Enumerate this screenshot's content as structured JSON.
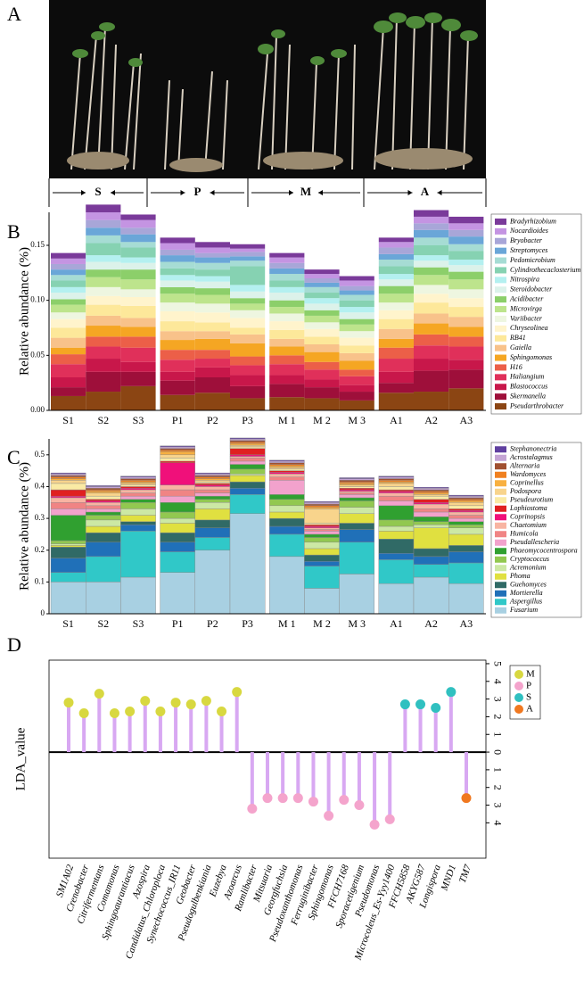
{
  "panel_labels": [
    "A",
    "B",
    "C",
    "D"
  ],
  "photo_groups": [
    "S",
    "P",
    "M",
    "A"
  ],
  "chart_data": [
    {
      "type": "stacked_bar",
      "ylabel": "Relative abundance (%)",
      "categories": [
        "S1",
        "S2",
        "S3",
        "P1",
        "P2",
        "P3",
        "M 1",
        "M 2",
        "M 3",
        "A1",
        "A2",
        "A3"
      ],
      "ylim": [
        0,
        0.18
      ],
      "yticks": [
        {
          "value": 0,
          "label": "0.00"
        },
        {
          "value": 0.05,
          "label": "0.05"
        },
        {
          "value": 0.1,
          "label": "0.10"
        },
        {
          "value": 0.15,
          "label": "0.15"
        }
      ],
      "series": [
        {
          "name": "Pseudarthrobacter",
          "color": "#8b4513",
          "values": [
            0.013,
            0.017,
            0.022,
            0.014,
            0.016,
            0.011,
            0.012,
            0.011,
            0.009,
            0.016,
            0.017,
            0.02
          ]
        },
        {
          "name": "Skermanella",
          "color": "#9e0f3a",
          "values": [
            0.008,
            0.018,
            0.013,
            0.013,
            0.014,
            0.011,
            0.012,
            0.01,
            0.008,
            0.009,
            0.019,
            0.017
          ]
        },
        {
          "name": "Blastococcus",
          "color": "#c8174a",
          "values": [
            0.009,
            0.012,
            0.009,
            0.008,
            0.009,
            0.01,
            0.008,
            0.007,
            0.006,
            0.01,
            0.011,
            0.009
          ]
        },
        {
          "name": "Haliangium",
          "color": "#e0305a",
          "values": [
            0.012,
            0.011,
            0.013,
            0.011,
            0.008,
            0.009,
            0.01,
            0.009,
            0.008,
            0.012,
            0.012,
            0.012
          ]
        },
        {
          "name": "H16",
          "color": "#ec5f48",
          "values": [
            0.009,
            0.009,
            0.01,
            0.009,
            0.008,
            0.008,
            0.008,
            0.007,
            0.006,
            0.01,
            0.01,
            0.009
          ]
        },
        {
          "name": "Sphingomonas",
          "color": "#f5a623",
          "values": [
            0.006,
            0.01,
            0.009,
            0.009,
            0.01,
            0.012,
            0.008,
            0.009,
            0.008,
            0.008,
            0.01,
            0.009
          ]
        },
        {
          "name": "Gaiella",
          "color": "#f8c28a",
          "values": [
            0.009,
            0.009,
            0.008,
            0.008,
            0.007,
            0.008,
            0.007,
            0.007,
            0.007,
            0.009,
            0.009,
            0.009
          ]
        },
        {
          "name": "RB41",
          "color": "#fde89a",
          "values": [
            0.009,
            0.01,
            0.011,
            0.009,
            0.008,
            0.006,
            0.008,
            0.007,
            0.007,
            0.009,
            0.01,
            0.009
          ]
        },
        {
          "name": "Chryseolinea",
          "color": "#fff4cc",
          "values": [
            0.008,
            0.008,
            0.008,
            0.009,
            0.009,
            0.009,
            0.008,
            0.007,
            0.007,
            0.008,
            0.008,
            0.008
          ]
        },
        {
          "name": "Variibacter",
          "color": "#eef6e0",
          "values": [
            0.006,
            0.008,
            0.007,
            0.008,
            0.008,
            0.007,
            0.007,
            0.006,
            0.006,
            0.007,
            0.008,
            0.008
          ]
        },
        {
          "name": "Microvirga",
          "color": "#bde48c",
          "values": [
            0.007,
            0.009,
            0.009,
            0.008,
            0.008,
            0.006,
            0.006,
            0.006,
            0.006,
            0.008,
            0.009,
            0.009
          ]
        },
        {
          "name": "Acidibacter",
          "color": "#8ccf6a",
          "values": [
            0.005,
            0.007,
            0.009,
            0.006,
            0.006,
            0.005,
            0.006,
            0.005,
            0.005,
            0.007,
            0.007,
            0.007
          ]
        },
        {
          "name": "Steroidobacter",
          "color": "#dcf2ea",
          "values": [
            0.006,
            0.007,
            0.006,
            0.006,
            0.006,
            0.006,
            0.007,
            0.006,
            0.006,
            0.006,
            0.006,
            0.006
          ]
        },
        {
          "name": "Nitrospira",
          "color": "#b4f0f0",
          "values": [
            0.005,
            0.006,
            0.005,
            0.005,
            0.005,
            0.006,
            0.005,
            0.005,
            0.005,
            0.005,
            0.005,
            0.005
          ]
        },
        {
          "name": "Cylindrothecaclosterium",
          "color": "#86d2b2",
          "values": [
            0.006,
            0.011,
            0.009,
            0.006,
            0.006,
            0.017,
            0.006,
            0.005,
            0.006,
            0.007,
            0.009,
            0.008
          ]
        },
        {
          "name": "Pedomicrobium",
          "color": "#a6dcd4",
          "values": [
            0.005,
            0.007,
            0.005,
            0.006,
            0.006,
            0.005,
            0.006,
            0.005,
            0.005,
            0.006,
            0.007,
            0.006
          ]
        },
        {
          "name": "Streptomyces",
          "color": "#6aa6d8",
          "values": [
            0.005,
            0.007,
            0.007,
            0.006,
            0.005,
            0.004,
            0.005,
            0.004,
            0.004,
            0.005,
            0.007,
            0.007
          ]
        },
        {
          "name": "Bryobacter",
          "color": "#a8a6d8",
          "values": [
            0.005,
            0.007,
            0.006,
            0.005,
            0.004,
            0.004,
            0.005,
            0.004,
            0.004,
            0.006,
            0.006,
            0.006
          ]
        },
        {
          "name": "Nocardioides",
          "color": "#c494e2",
          "values": [
            0.005,
            0.007,
            0.007,
            0.006,
            0.005,
            0.003,
            0.005,
            0.004,
            0.005,
            0.005,
            0.006,
            0.006
          ]
        },
        {
          "name": "Bradyrhizobium",
          "color": "#7a3a9a",
          "values": [
            0.005,
            0.007,
            0.005,
            0.005,
            0.005,
            0.004,
            0.004,
            0.004,
            0.004,
            0.004,
            0.006,
            0.006
          ]
        }
      ]
    },
    {
      "type": "stacked_bar",
      "ylabel": "Relative abundance (%)",
      "categories": [
        "S1",
        "S2",
        "S3",
        "P1",
        "P2",
        "P3",
        "M 1",
        "M 2",
        "M 3",
        "A1",
        "A2",
        "A3"
      ],
      "ylim": [
        0,
        0.55
      ],
      "yticks": [
        0,
        0.1,
        0.2,
        0.3,
        0.4,
        0.5
      ],
      "series": [
        {
          "name": "Fusarium",
          "color": "#a8d0e2",
          "values": [
            0.1,
            0.1,
            0.115,
            0.13,
            0.2,
            0.315,
            0.18,
            0.08,
            0.125,
            0.095,
            0.115,
            0.095
          ]
        },
        {
          "name": "Aspergillus",
          "color": "#30c8c8",
          "values": [
            0.03,
            0.08,
            0.145,
            0.065,
            0.04,
            0.06,
            0.07,
            0.07,
            0.1,
            0.075,
            0.04,
            0.065
          ]
        },
        {
          "name": "Mortierella",
          "color": "#2070b8",
          "values": [
            0.045,
            0.045,
            0.02,
            0.03,
            0.03,
            0.02,
            0.025,
            0.015,
            0.04,
            0.02,
            0.025,
            0.035
          ]
        },
        {
          "name": "Guehomyces",
          "color": "#306a66",
          "values": [
            0.035,
            0.03,
            0.01,
            0.03,
            0.025,
            0.02,
            0.025,
            0.02,
            0.02,
            0.045,
            0.025,
            0.02
          ]
        },
        {
          "name": "Phoma",
          "color": "#e0e040",
          "values": [
            0.005,
            0.02,
            0.02,
            0.03,
            0.035,
            0.02,
            0.02,
            0.02,
            0.03,
            0.025,
            0.065,
            0.035
          ]
        },
        {
          "name": "Acremonium",
          "color": "#cce8a4",
          "values": [
            0.005,
            0.02,
            0.02,
            0.015,
            0.02,
            0.005,
            0.02,
            0.02,
            0.02,
            0.015,
            0.01,
            0.02
          ]
        },
        {
          "name": "Cryptococcus",
          "color": "#92c850",
          "values": [
            0.01,
            0.015,
            0.02,
            0.02,
            0.01,
            0.015,
            0.02,
            0.015,
            0.02,
            0.02,
            0.01,
            0.01
          ]
        },
        {
          "name": "Phaeomycocentrospora",
          "color": "#30a030",
          "values": [
            0.08,
            0.01,
            0.01,
            0.03,
            0.01,
            0.015,
            0.015,
            0.01,
            0.01,
            0.045,
            0.015,
            0.01
          ]
        },
        {
          "name": "Pseudallescheria",
          "color": "#f2a2cc",
          "values": [
            0.02,
            0.01,
            0.01,
            0.02,
            0.01,
            0.01,
            0.045,
            0.01,
            0.01,
            0.015,
            0.015,
            0.01
          ]
        },
        {
          "name": "Humicola",
          "color": "#f08484",
          "values": [
            0.02,
            0.01,
            0.01,
            0.02,
            0.01,
            0.01,
            0.01,
            0.005,
            0.005,
            0.015,
            0.01,
            0.01
          ]
        },
        {
          "name": "Chaetomium",
          "color": "#f8b4a2",
          "values": [
            0.015,
            0.01,
            0.01,
            0.015,
            0.01,
            0.005,
            0.01,
            0.005,
            0.005,
            0.01,
            0.015,
            0.01
          ]
        },
        {
          "name": "Coprinopsis",
          "color": "#f0107a",
          "values": [
            0.005,
            0.005,
            0.005,
            0.07,
            0.005,
            0.005,
            0.005,
            0.005,
            0.005,
            0.005,
            0.005,
            0.005
          ]
        },
        {
          "name": "Lophiostoma",
          "color": "#e02020",
          "values": [
            0.02,
            0.005,
            0.005,
            0.005,
            0.005,
            0.02,
            0.005,
            0.005,
            0.005,
            0.005,
            0.01,
            0.005
          ]
        },
        {
          "name": "Pseudeurotium",
          "color": "#faeaa4",
          "values": [
            0.02,
            0.01,
            0.005,
            0.01,
            0.005,
            0.005,
            0.005,
            0.005,
            0.005,
            0.01,
            0.01,
            0.01
          ]
        },
        {
          "name": "Podospora",
          "color": "#f8d48c",
          "values": [
            0.01,
            0.01,
            0.005,
            0.01,
            0.005,
            0.005,
            0.005,
            0.045,
            0.005,
            0.01,
            0.005,
            0.01
          ]
        },
        {
          "name": "Coprinellus",
          "color": "#f8b040",
          "values": [
            0.005,
            0.005,
            0.005,
            0.01,
            0.005,
            0.005,
            0.005,
            0.005,
            0.005,
            0.005,
            0.005,
            0.005
          ]
        },
        {
          "name": "Wardomyces",
          "color": "#f08020",
          "values": [
            0.005,
            0.005,
            0.005,
            0.005,
            0.005,
            0.005,
            0.005,
            0.005,
            0.005,
            0.005,
            0.005,
            0.005
          ]
        },
        {
          "name": "Alternaria",
          "color": "#a05030",
          "values": [
            0.005,
            0.005,
            0.005,
            0.005,
            0.005,
            0.005,
            0.005,
            0.005,
            0.005,
            0.005,
            0.005,
            0.005
          ]
        },
        {
          "name": "Acrostalagmus",
          "color": "#c4a4d4",
          "values": [
            0.005,
            0.005,
            0.005,
            0.005,
            0.005,
            0.005,
            0.005,
            0.005,
            0.005,
            0.005,
            0.005,
            0.005
          ]
        },
        {
          "name": "Stephanonectria",
          "color": "#6040a0",
          "values": [
            0.003,
            0.003,
            0.003,
            0.003,
            0.003,
            0.003,
            0.003,
            0.003,
            0.003,
            0.003,
            0.003,
            0.003
          ]
        }
      ]
    },
    {
      "type": "lollipop",
      "ylabel": "LDA_value",
      "categories": [
        "SM1A02",
        "Crenobacter",
        "Citrifermentans",
        "Comamonas",
        "Sphingoaurantiacus",
        "Azospira",
        "Candidatus_Chloroploca",
        "Synechococcus_IR11",
        "Geobacter",
        "Pseudogulbenkiania",
        "Euzebya",
        "Azoarcus",
        "Ramlibacter",
        "Mitsuaria",
        "Georgfuchsia",
        "Pseudoxanthomonas",
        "Ferruginibacter",
        "Sphingomonas",
        "FFCH7168",
        "Sporacetigenium",
        "Pseudomonas",
        "Microcoleus_Es-Yyy1400",
        "FFCH5858",
        "AKYG587",
        "Longispora",
        "MND1",
        "TM7"
      ],
      "values": [
        2.8,
        2.2,
        3.3,
        2.2,
        2.3,
        2.9,
        2.3,
        2.8,
        2.7,
        2.9,
        2.3,
        3.4,
        -3.2,
        -2.6,
        -2.6,
        -2.6,
        -2.8,
        -3.6,
        -2.7,
        -3.0,
        -4.1,
        -3.8,
        2.7,
        2.7,
        2.5,
        3.4,
        -2.6
      ],
      "colors": [
        "#d8d840",
        "#d8d840",
        "#d8d840",
        "#d8d840",
        "#d8d840",
        "#d8d840",
        "#d8d840",
        "#d8d840",
        "#d8d840",
        "#d8d840",
        "#d8d840",
        "#d8d840",
        "#f4a4cc",
        "#f4a4cc",
        "#f4a4cc",
        "#f4a4cc",
        "#f4a4cc",
        "#f4a4cc",
        "#f4a4cc",
        "#f4a4cc",
        "#f4a4cc",
        "#f4a4cc",
        "#30c0c0",
        "#30c0c0",
        "#30c0c0",
        "#30c0c0",
        "#f07820"
      ],
      "stick_color": "#d8a8f2",
      "ylim": [
        -6,
        5.2
      ],
      "yticks": [
        5,
        4,
        3,
        2,
        1,
        0,
        {
          "value": -1,
          "label": "1"
        },
        {
          "value": -2,
          "label": "2"
        },
        {
          "value": -3,
          "label": "3"
        },
        {
          "value": -4,
          "label": "4"
        }
      ],
      "legend": [
        {
          "name": "M",
          "color": "#d8d840"
        },
        {
          "name": "P",
          "color": "#f4a4cc"
        },
        {
          "name": "S",
          "color": "#30c0c0"
        },
        {
          "name": "A",
          "color": "#f07820"
        }
      ]
    }
  ]
}
